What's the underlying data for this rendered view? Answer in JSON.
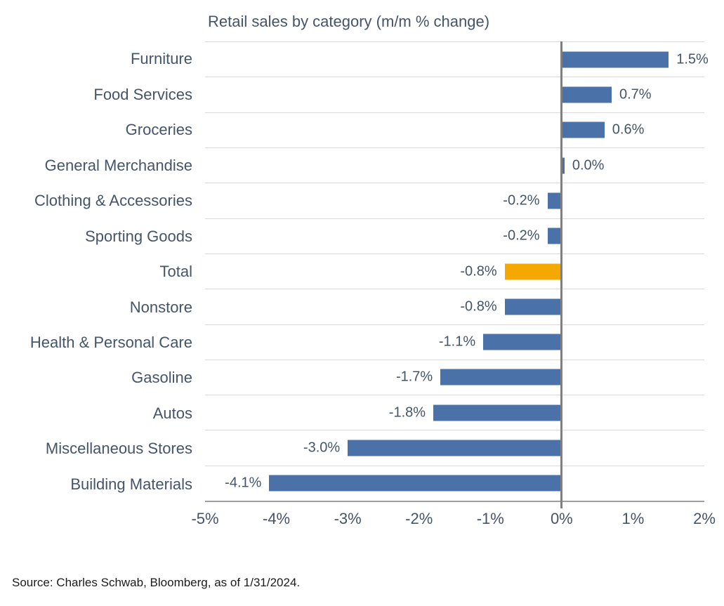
{
  "title": "Retail sales by category (m/m % change)",
  "source": "Source: Charles Schwab, Bloomberg, as of 1/31/2024.",
  "colors": {
    "bar": "#4A72A9",
    "highlight_bar": "#F5A800",
    "text": "#44546A",
    "gridline": "#D9D9D9",
    "axis_line": "#A0A0A0",
    "zero_line": "#7F7F7F",
    "source_text": "#1A1A1A"
  },
  "chart_data": {
    "type": "bar",
    "orientation": "horizontal",
    "title": "Retail sales by category (m/m % change)",
    "categories": [
      "Furniture",
      "Food Services",
      "Groceries",
      "General Merchandise",
      "Clothing & Accessories",
      "Sporting Goods",
      "Total",
      "Nonstore",
      "Health & Personal Care",
      "Gasoline",
      "Autos",
      "Miscellaneous Stores",
      "Building Materials"
    ],
    "values": [
      1.5,
      0.7,
      0.6,
      0.0,
      -0.2,
      -0.2,
      -0.8,
      -0.8,
      -1.1,
      -1.7,
      -1.8,
      -3.0,
      -4.1
    ],
    "value_labels": [
      "1.5%",
      "0.7%",
      "0.6%",
      "0.0%",
      "-0.2%",
      "-0.2%",
      "-0.8%",
      "-0.8%",
      "-1.1%",
      "-1.7%",
      "-1.8%",
      "-3.0%",
      "-4.1%"
    ],
    "highlight_index": 6,
    "highlight_category": "Total",
    "xlabel": "",
    "ylabel": "",
    "xlim": [
      -5,
      2
    ],
    "x_tick_labels": [
      "-5%",
      "-4%",
      "-3%",
      "-2%",
      "-1%",
      "0%",
      "1%",
      "2%"
    ],
    "grid": "horizontal-row-separators",
    "legend": "none"
  }
}
